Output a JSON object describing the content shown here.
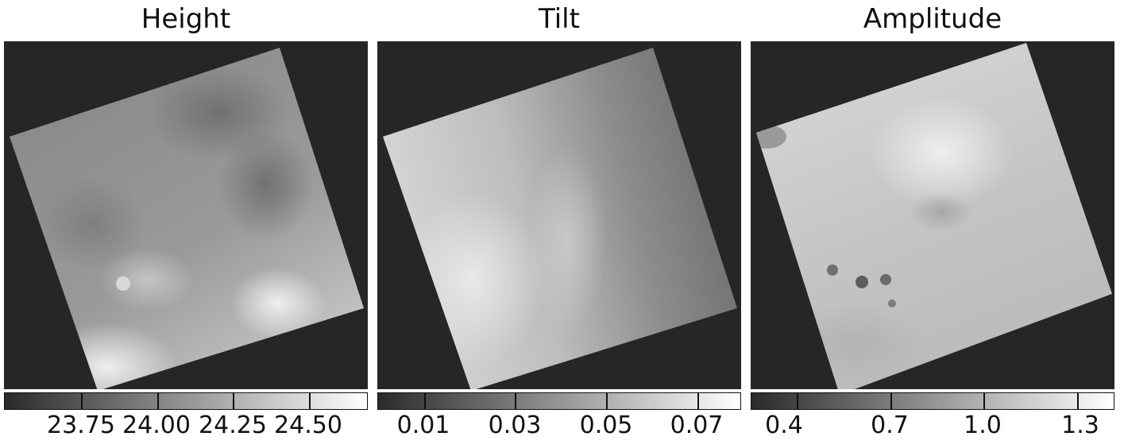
{
  "chart_data": [
    {
      "type": "heatmap",
      "title": "Height",
      "colormap": "gray",
      "colorbar": {
        "ticks": [
          23.75,
          24.0,
          24.25,
          24.5
        ],
        "tick_labels": [
          "23.75",
          "24.00",
          "24.25",
          "24.50"
        ],
        "range": [
          23.5,
          24.65
        ]
      }
    },
    {
      "type": "heatmap",
      "title": "Tilt",
      "colormap": "gray",
      "colorbar": {
        "ticks": [
          0.01,
          0.03,
          0.05,
          0.07
        ],
        "tick_labels": [
          "0.01",
          "0.03",
          "0.05",
          "0.07"
        ],
        "range": [
          0.0,
          0.08
        ]
      }
    },
    {
      "type": "heatmap",
      "title": "Amplitude",
      "colormap": "gray",
      "colorbar": {
        "ticks": [
          0.4,
          0.7,
          1.0,
          1.3
        ],
        "tick_labels": [
          "0.4",
          "0.7",
          "1.0",
          "1.3"
        ],
        "range": [
          0.25,
          1.42
        ]
      }
    }
  ],
  "colors": {
    "background": "#262626",
    "frame": "#111111"
  }
}
